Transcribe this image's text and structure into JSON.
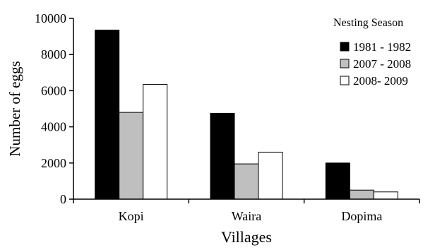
{
  "chart_data": {
    "type": "bar",
    "title": "",
    "xlabel": "Villages",
    "ylabel": "Number of eggs",
    "categories": [
      "Kopi",
      "Waira",
      "Dopima"
    ],
    "ylim": [
      0,
      10000
    ],
    "yticks": [
      0,
      2000,
      4000,
      6000,
      8000,
      10000
    ],
    "grid": false,
    "legend": {
      "title": "Nesting Season",
      "placement": "top-right"
    },
    "series": [
      {
        "name": "1981 - 1982",
        "values": [
          9350,
          4750,
          2000
        ],
        "color": "#000000"
      },
      {
        "name": "2007 - 2008",
        "values": [
          4800,
          1950,
          500
        ],
        "color": "#bfbfbf"
      },
      {
        "name": "2008- 2009",
        "values": [
          6350,
          2600,
          400
        ],
        "color": "#ffffff"
      }
    ]
  }
}
